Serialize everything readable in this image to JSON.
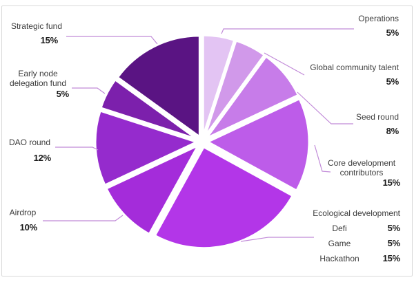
{
  "chart_data": {
    "type": "pie",
    "title": "",
    "start_angle_deg": 0,
    "direction": "clockwise",
    "legend_position": "callouts",
    "leader_line_color": "#c18ad8",
    "slices": [
      {
        "label": "Operations",
        "pct": "5%",
        "value": 5,
        "color": "#e3c4f3"
      },
      {
        "label": "Global community talent",
        "pct": "5%",
        "value": 5,
        "color": "#d199ea"
      },
      {
        "label": "Seed round",
        "pct": "8%",
        "value": 8,
        "color": "#c77ce9"
      },
      {
        "label": "Core development contributors",
        "pct": "15%",
        "value": 15,
        "color": "#bd5ce9"
      },
      {
        "label": "Ecological development",
        "pct": "25%",
        "value": 25,
        "color": "#b336e8",
        "breakdown": [
          {
            "label": "Defi",
            "pct": "5%",
            "value": 5
          },
          {
            "label": "Game",
            "pct": "5%",
            "value": 5
          },
          {
            "label": "Hackathon",
            "pct": "15%",
            "value": 15
          }
        ]
      },
      {
        "label": "Airdrop",
        "pct": "10%",
        "value": 10,
        "color": "#a42cda"
      },
      {
        "label": "DAO round",
        "pct": "12%",
        "value": 12,
        "color": "#952bcd"
      },
      {
        "label": "Early node delegation fund",
        "pct": "5%",
        "value": 5,
        "color": "#7c20ac"
      },
      {
        "label": "Strategic fund",
        "pct": "15%",
        "value": 15,
        "color": "#5a1483"
      }
    ]
  }
}
